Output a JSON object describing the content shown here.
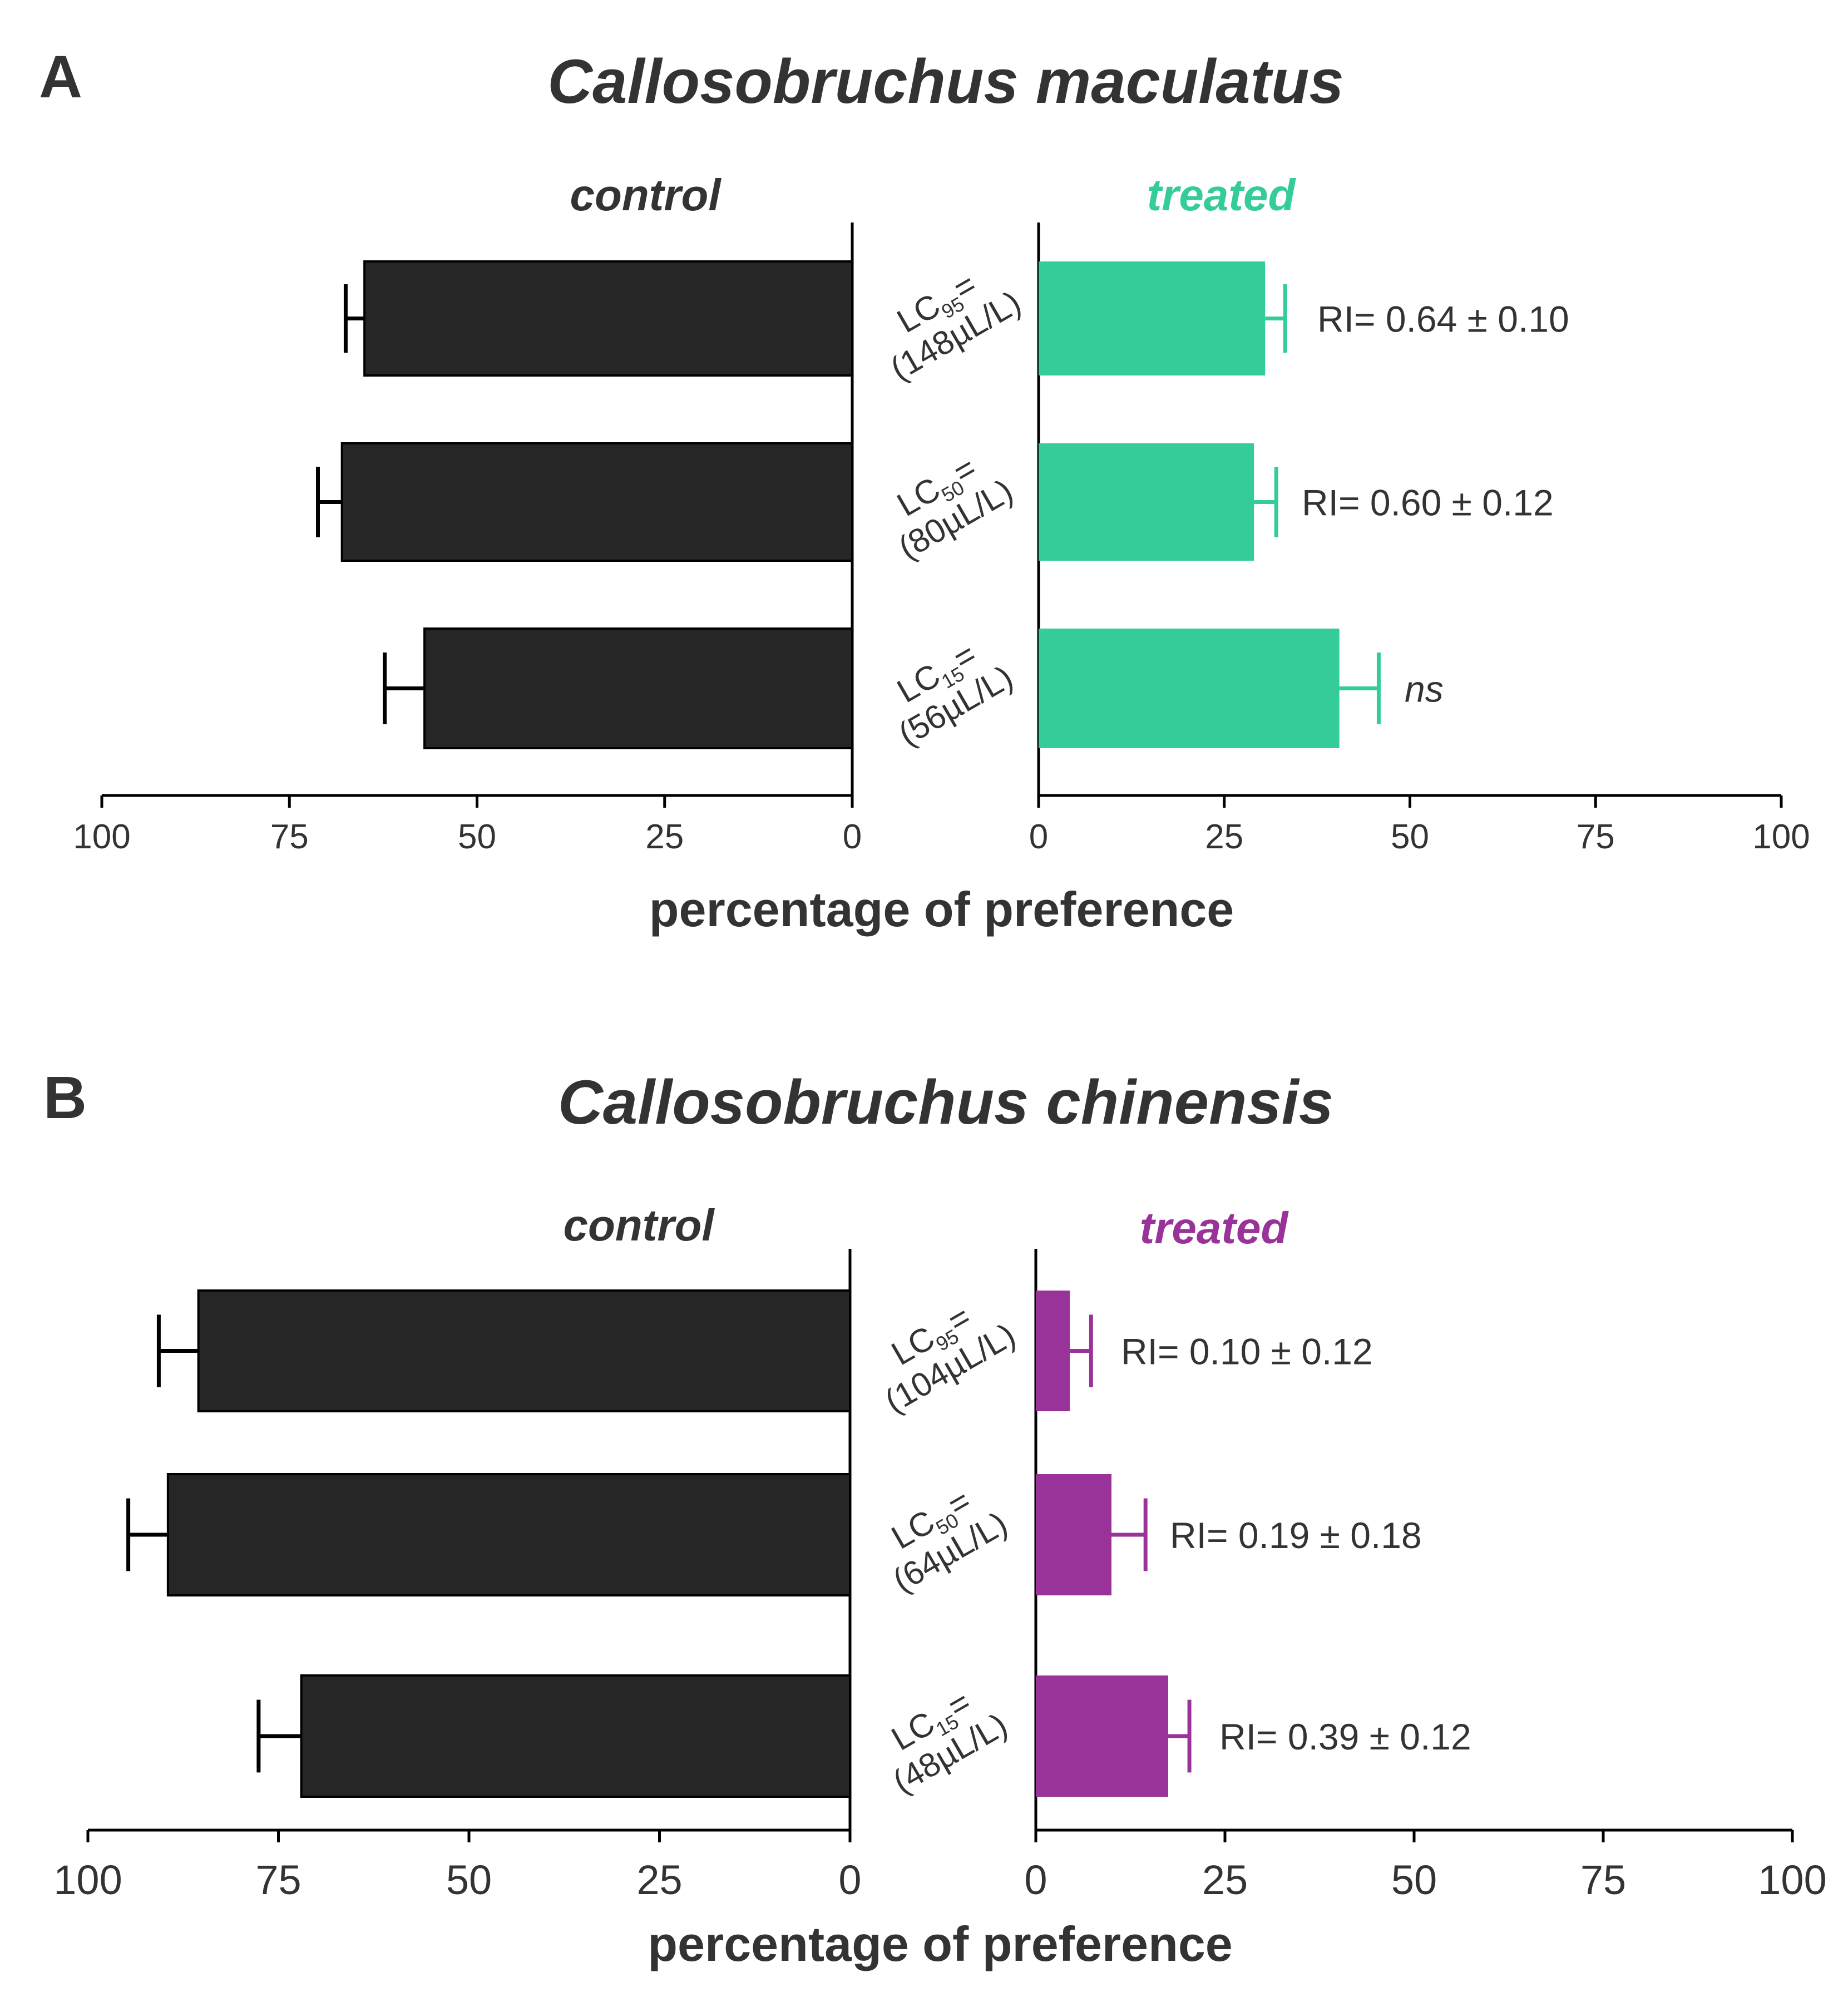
{
  "chart_data": [
    {
      "panel": "A",
      "type": "bar",
      "orientation": "horizontal-mirrored",
      "title": "Callosobruchus maculatus",
      "xlabel": "percentage of preference",
      "left_label": "control",
      "right_label": "treated",
      "treated_color": "#34CC98",
      "control_color": "#262626",
      "xlim": [
        0,
        100
      ],
      "ticks": [
        0,
        25,
        50,
        75,
        100
      ],
      "categories": [
        {
          "lc": "LC",
          "sub": "95",
          "eq": "=",
          "dose": "(148µL/L)"
        },
        {
          "lc": "LC",
          "sub": "50",
          "eq": "=",
          "dose": "(80µL/L)"
        },
        {
          "lc": "LC",
          "sub": "15",
          "eq": "=",
          "dose": "(56µL/L)"
        }
      ],
      "series": [
        {
          "name": "control",
          "values": [
            65,
            68,
            57
          ],
          "errors": [
            2.5,
            3.2,
            5.3
          ]
        },
        {
          "name": "treated",
          "values": [
            30.5,
            29,
            40.5
          ],
          "errors": [
            2.7,
            3.0,
            5.3
          ]
        }
      ],
      "annotations": [
        "RI= 0.64 ± 0.10",
        "RI= 0.60 ± 0.12",
        "ns"
      ]
    },
    {
      "panel": "B",
      "type": "bar",
      "orientation": "horizontal-mirrored",
      "title": "Callosobruchus chinensis",
      "xlabel": "percentage of preference",
      "left_label": "control",
      "right_label": "treated",
      "treated_color": "#993399",
      "control_color": "#262626",
      "xlim": [
        0,
        100
      ],
      "ticks": [
        0,
        25,
        50,
        75,
        100
      ],
      "categories": [
        {
          "lc": "LC",
          "sub": "95",
          "eq": "=",
          "dose": "(104µL/L)"
        },
        {
          "lc": "LC",
          "sub": "50",
          "eq": "=",
          "dose": "(64µL/L)"
        },
        {
          "lc": "LC",
          "sub": "15",
          "eq": "=",
          "dose": "(48µL/L)"
        }
      ],
      "series": [
        {
          "name": "control",
          "values": [
            85.5,
            89.5,
            72
          ],
          "errors": [
            5.2,
            5.2,
            5.6
          ]
        },
        {
          "name": "treated",
          "values": [
            4.5,
            10,
            17.5
          ],
          "errors": [
            2.8,
            4.5,
            2.8
          ]
        }
      ],
      "annotations": [
        "RI= 0.10 ± 0.12",
        "RI= 0.19 ± 0.18",
        "RI= 0.39 ± 0.12"
      ]
    }
  ]
}
